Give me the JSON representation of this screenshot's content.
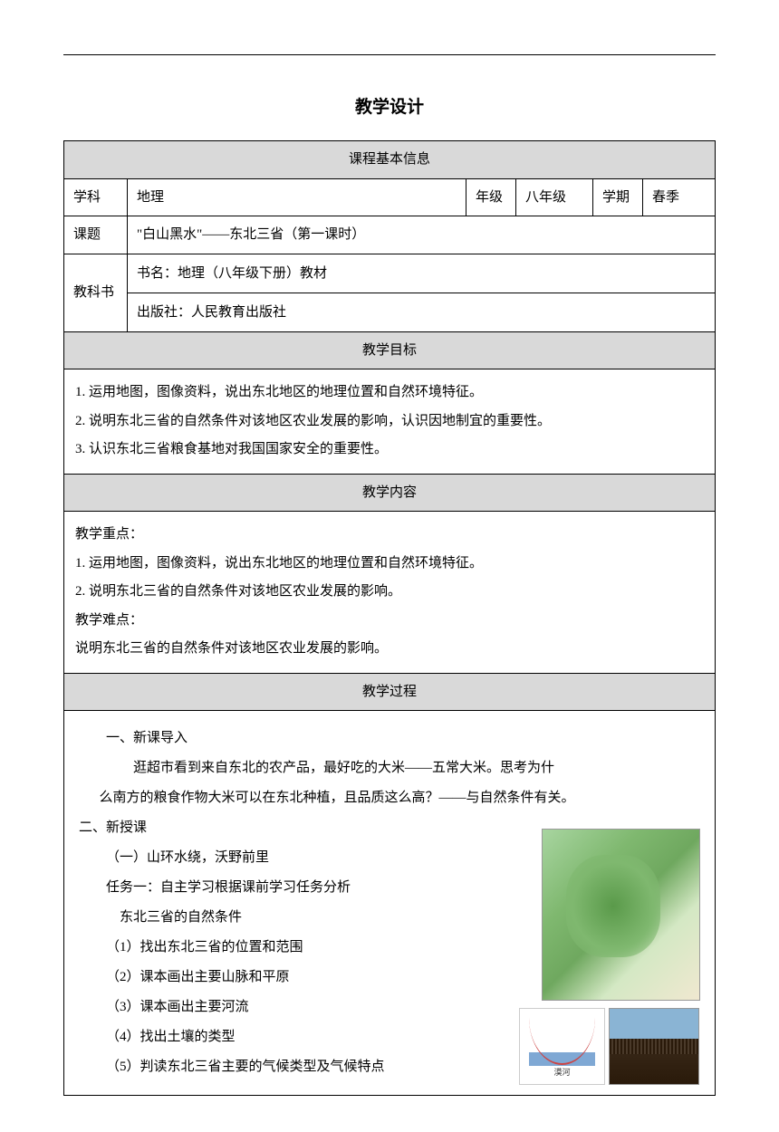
{
  "doc_title": "教学设计",
  "sections": {
    "basic_info_header": "课程基本信息",
    "goals_header": "教学目标",
    "content_header": "教学内容",
    "process_header": "教学过程"
  },
  "basic_info": {
    "subject_label": "学科",
    "subject_value": "地理",
    "grade_label": "年级",
    "grade_value": "八年级",
    "term_label": "学期",
    "term_value": "春季",
    "topic_label": "课题",
    "topic_value": "\"白山黑水\"——东北三省（第一课时）",
    "textbook_label": "教科书",
    "book_name": "书名：地理（八年级下册）教材",
    "publisher": "出版社：人民教育出版社"
  },
  "goals": {
    "line1": "1. 运用地图，图像资料，说出东北地区的地理位置和自然环境特征。",
    "line2": "2. 说明东北三省的自然条件对该地区农业发展的影响，认识因地制宜的重要性。",
    "line3": "3. 认识东北三省粮食基地对我国国家安全的重要性。"
  },
  "content": {
    "keypoints_label": "教学重点：",
    "kp1": "1. 运用地图，图像资料，说出东北地区的地理位置和自然环境特征。",
    "kp2": "2. 说明东北三省的自然条件对该地区农业发展的影响。",
    "difficulties_label": "教学难点：",
    "d1": "说明东北三省的自然条件对该地区农业发展的影响。"
  },
  "process": {
    "p1": "一、新课导入",
    "p2": "逛超市看到来自东北的农产品，最好吃的大米——五常大米。思考为什",
    "p2b": "么南方的粮食作物大米可以在东北种植，且品质这么高？——与自然条件有关。",
    "p3": "二、新授课",
    "p4": "（一）山环水绕，沃野前里",
    "p5": "任务一：自主学习根据课前学习任务分析",
    "p5b": "东北三省的自然条件",
    "p6": "（1）找出东北三省的位置和范围",
    "p7": "（2）课本画出主要山脉和平原",
    "p8": "（3）课本画出主要河流",
    "p9": "（4）找出土壤的类型",
    "p10": "（5）判读东北三省主要的气候类型及气候特点"
  },
  "chart_label": "漠河",
  "colors": {
    "header_bg": "#d9d9d9",
    "border": "#000000",
    "text": "#000000"
  }
}
